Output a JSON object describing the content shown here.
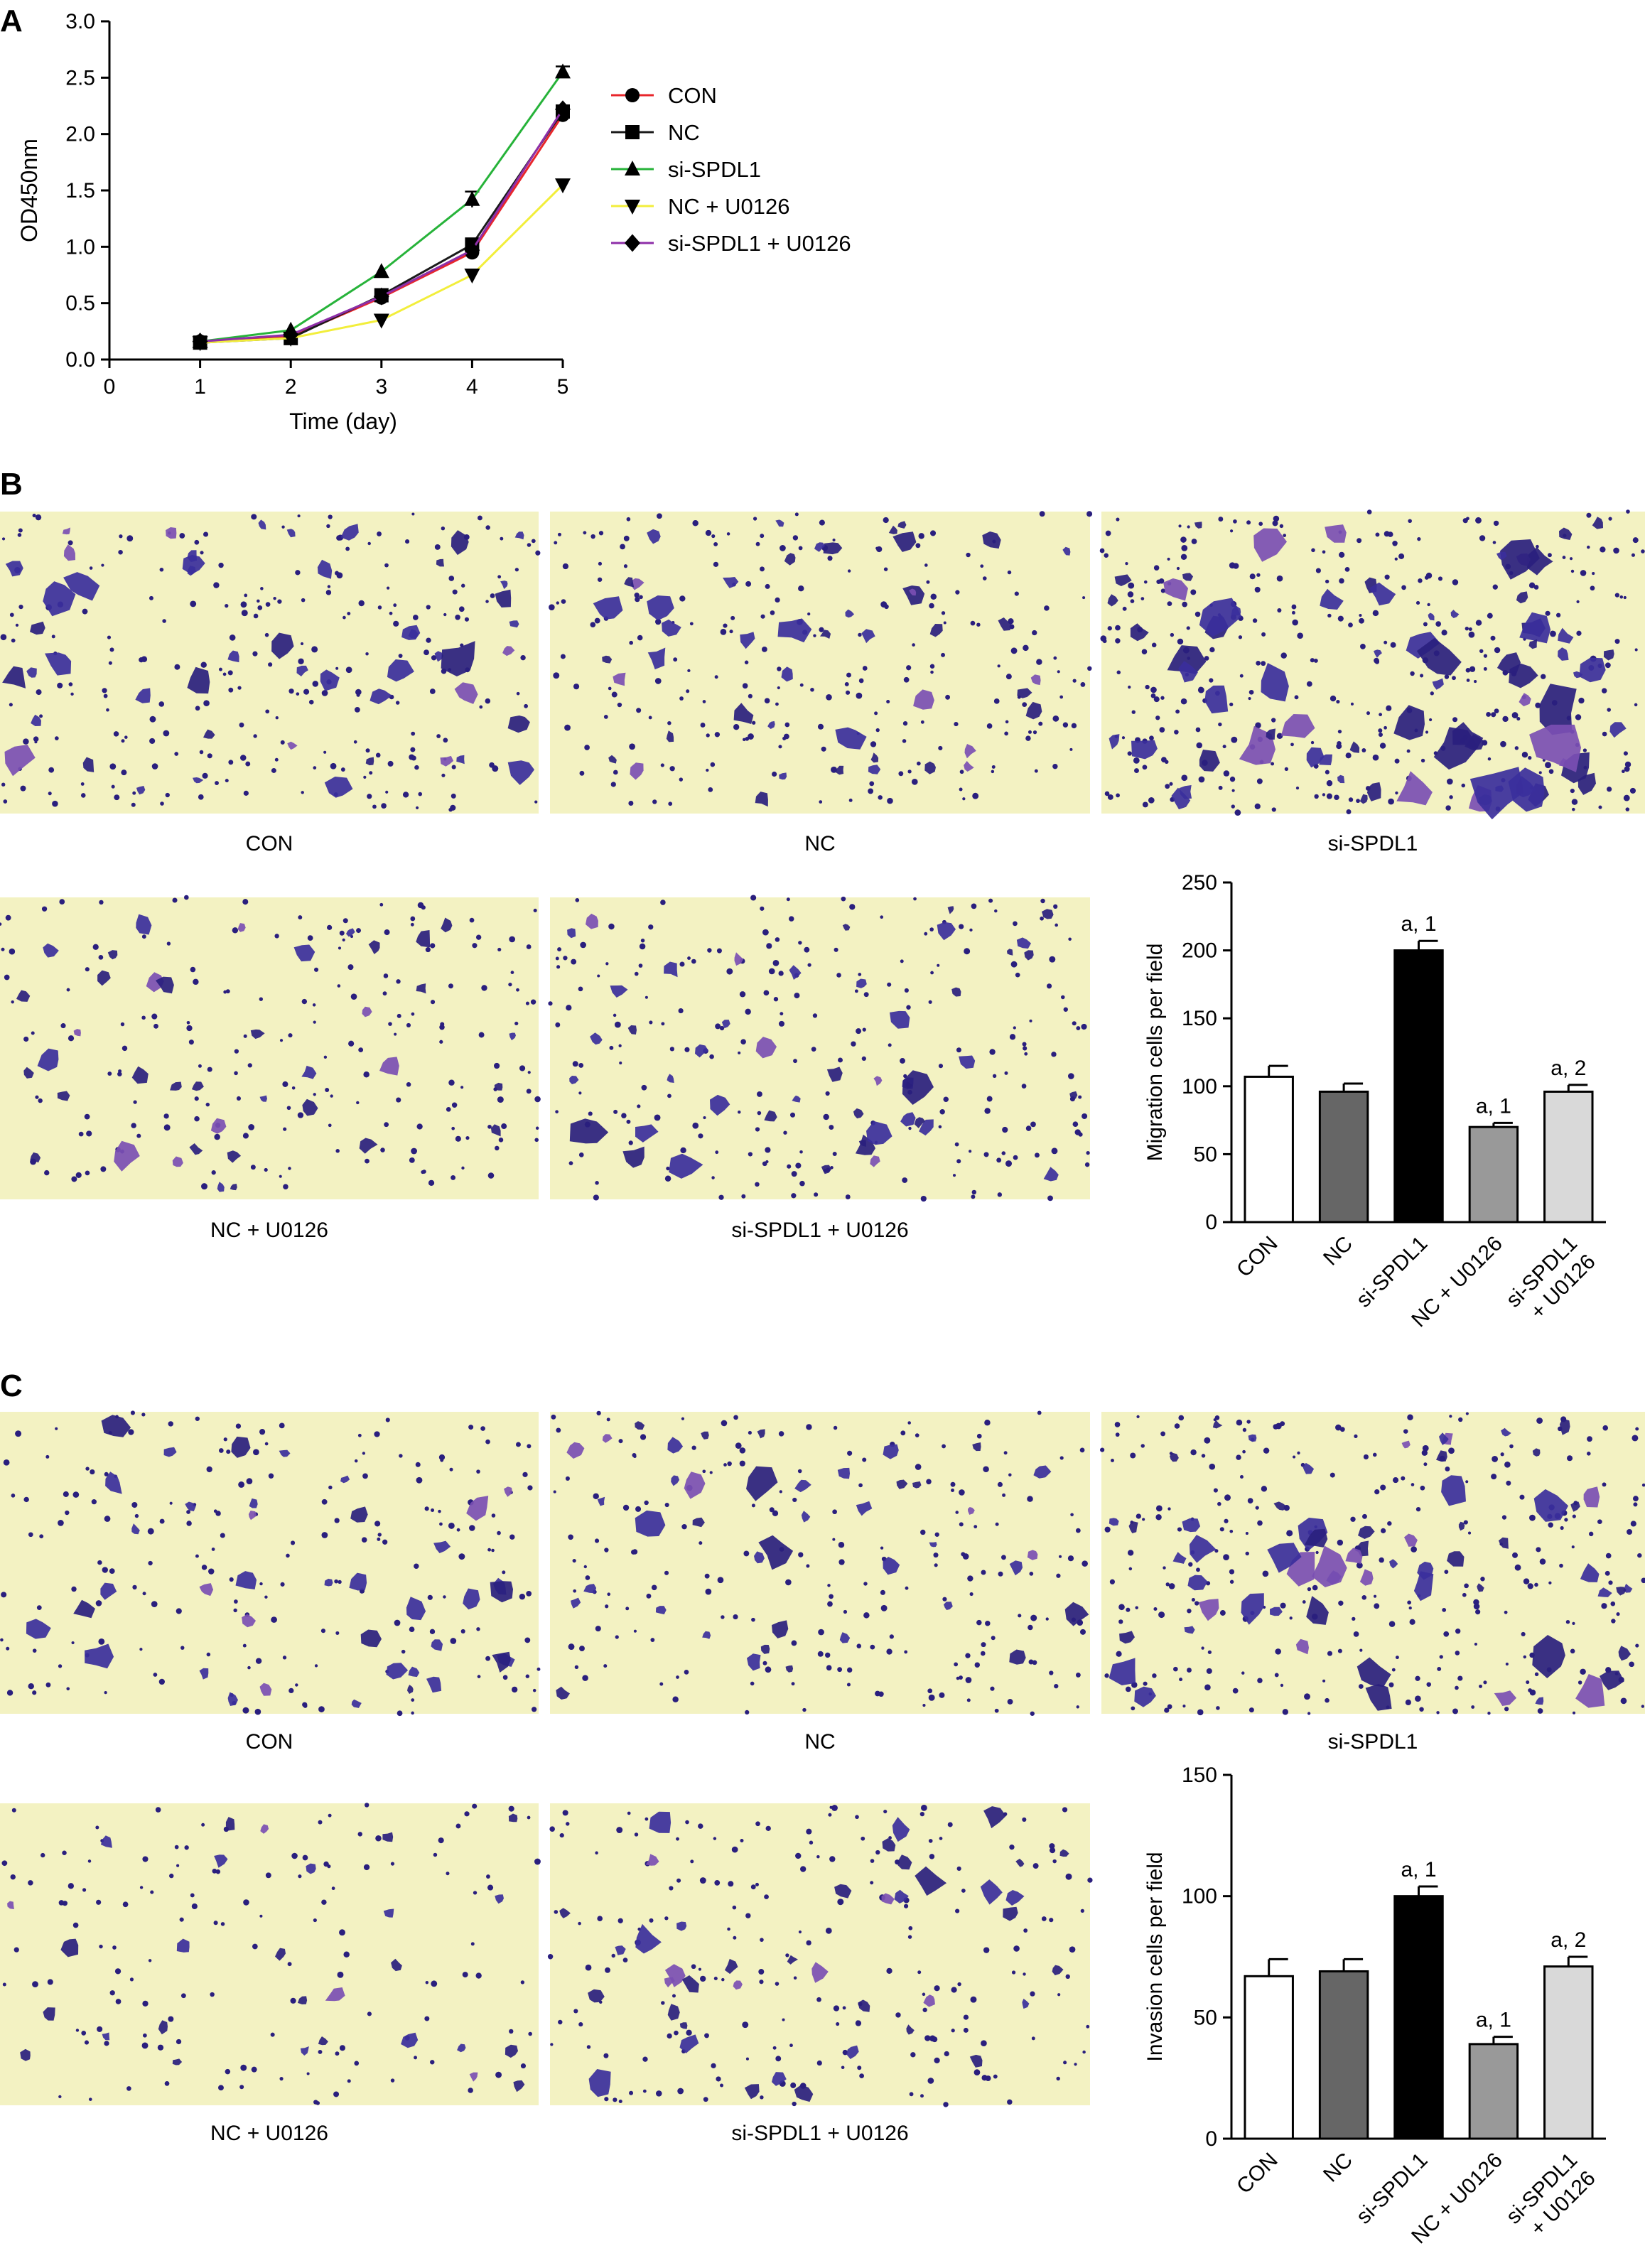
{
  "panels": {
    "a": {
      "letter": "A"
    },
    "b": {
      "letter": "B",
      "micrographs": [
        {
          "label": "CON"
        },
        {
          "label": "NC"
        },
        {
          "label": "si-SPDL1"
        },
        {
          "label": "NC + U0126"
        },
        {
          "label": "si-SPDL1 + U0126"
        }
      ]
    },
    "c": {
      "letter": "C",
      "micrographs": [
        {
          "label": "CON"
        },
        {
          "label": "NC"
        },
        {
          "label": "si-SPDL1"
        },
        {
          "label": "NC + U0126"
        },
        {
          "label": "si-SPDL1 + U0126"
        }
      ]
    }
  },
  "colors": {
    "micrograph_bg": "#f3f2c2",
    "cell_stain": "#3b2f9c",
    "cell_stain_dark": "#2a1f7e",
    "cell_stain_purple": "#7b4fb3"
  },
  "chart_data": [
    {
      "id": "proliferation",
      "type": "line",
      "title": "",
      "xlabel": "Time (day)",
      "ylabel": "OD450nm",
      "xlim": [
        0,
        5
      ],
      "ylim": [
        0,
        3.0
      ],
      "x_ticks": [
        "0",
        "1",
        "2",
        "3",
        "4",
        "5"
      ],
      "y_ticks": [
        "0.0",
        "0.5",
        "1.0",
        "1.5",
        "2.0",
        "2.5",
        "3.0"
      ],
      "grid": false,
      "legend_position": "right",
      "x": [
        1,
        2,
        3,
        4,
        5
      ],
      "series": [
        {
          "name": "CON",
          "marker": "circle",
          "color": "#e8262b",
          "values": [
            0.16,
            0.2,
            0.55,
            0.95,
            2.17
          ]
        },
        {
          "name": "NC",
          "marker": "square",
          "color": "#1a1a1a",
          "values": [
            0.15,
            0.19,
            0.57,
            1.02,
            2.2
          ]
        },
        {
          "name": "si-SPDL1",
          "marker": "triangle-up",
          "color": "#27b33a",
          "values": [
            0.16,
            0.26,
            0.78,
            1.42,
            2.55
          ]
        },
        {
          "name": "NC + U0126",
          "marker": "triangle-down",
          "color": "#f2ee3b",
          "values": [
            0.15,
            0.19,
            0.35,
            0.75,
            1.55
          ]
        },
        {
          "name": "si-SPDL1 + U0126",
          "marker": "diamond",
          "color": "#8e2ea8",
          "values": [
            0.16,
            0.22,
            0.56,
            0.97,
            2.22
          ]
        }
      ],
      "errors": [
        {
          "series": "si-SPDL1",
          "x": 4,
          "err": 0.07
        },
        {
          "series": "si-SPDL1",
          "x": 5,
          "err": 0.05
        }
      ]
    },
    {
      "id": "migration",
      "type": "bar",
      "title": "",
      "xlabel": "",
      "ylabel": "Migration cells per field",
      "ylim": [
        0,
        250
      ],
      "y_ticks": [
        "0",
        "50",
        "100",
        "150",
        "200",
        "250"
      ],
      "grid": false,
      "categories": [
        "CON",
        "NC",
        "si-SPDL1",
        "NC + U0126",
        "si-SPDL1 + U0126"
      ],
      "category_lines": [
        [
          "CON"
        ],
        [
          "NC"
        ],
        [
          "si-SPDL1"
        ],
        [
          "NC + U0126"
        ],
        [
          "si-SPDL1",
          "+ U0126"
        ]
      ],
      "values": [
        107,
        96,
        200,
        70,
        96
      ],
      "errors": [
        8,
        6,
        7,
        3,
        5
      ],
      "annotations": [
        "",
        "",
        "a, 1",
        "a, 1",
        "a, 2"
      ],
      "bar_colors": [
        "#ffffff",
        "#666666",
        "#000000",
        "#999999",
        "#d9d9d9"
      ]
    },
    {
      "id": "invasion",
      "type": "bar",
      "title": "",
      "xlabel": "",
      "ylabel": "Invasion cells per field",
      "ylim": [
        0,
        150
      ],
      "y_ticks": [
        "0",
        "50",
        "100",
        "150"
      ],
      "grid": false,
      "categories": [
        "CON",
        "NC",
        "si-SPDL1",
        "NC + U0126",
        "si-SPDL1 + U0126"
      ],
      "category_lines": [
        [
          "CON"
        ],
        [
          "NC"
        ],
        [
          "si-SPDL1"
        ],
        [
          "NC + U0126"
        ],
        [
          "si-SPDL1",
          "+ U0126"
        ]
      ],
      "values": [
        67,
        69,
        100,
        39,
        71
      ],
      "errors": [
        7,
        5,
        4,
        3,
        4
      ],
      "annotations": [
        "",
        "",
        "a, 1",
        "a, 1",
        "a, 2"
      ],
      "bar_colors": [
        "#ffffff",
        "#666666",
        "#000000",
        "#999999",
        "#d9d9d9"
      ]
    }
  ]
}
